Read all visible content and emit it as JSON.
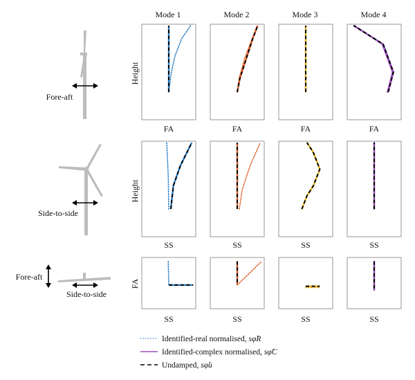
{
  "columns": [
    "Mode 1",
    "Mode 2",
    "Mode 3",
    "Mode 4"
  ],
  "rows": [
    {
      "key": "fa",
      "ylabel": "Height",
      "xlabel": "FA",
      "direction_labels": [
        "Fore-aft"
      ]
    },
    {
      "key": "ss",
      "ylabel": "Height",
      "xlabel": "SS",
      "direction_labels": [
        "Side-to-side"
      ]
    },
    {
      "key": "blade",
      "ylabel": "FA",
      "xlabel": "SS",
      "direction_labels": [
        "Fore-aft",
        "Side-to-side"
      ]
    }
  ],
  "legend": [
    {
      "style": "dotted",
      "color": "#2a7fc9",
      "text": "Identified-real normalised, ",
      "symbol": "sφ̃R"
    },
    {
      "style": "solid",
      "color": "#9b4fbf",
      "text": "Identified-complex normalised, ",
      "symbol": "sφ̃C"
    },
    {
      "style": "dashed",
      "color": "#000000",
      "text": "Undamped, ",
      "symbol": "sφ̃u"
    }
  ],
  "chart_data": {
    "type": "line",
    "colors": {
      "mode1": "#2a7fc9",
      "mode2": "#e0622a",
      "mode3": "#e8b320",
      "mode4": "#9b4fbf",
      "undamped": "#000000"
    },
    "panels": [
      {
        "row": 0,
        "col": 0,
        "color": "#2a7fc9",
        "undamped": [
          [
            0.0,
            0.0
          ],
          [
            0.0,
            1.0
          ]
        ],
        "identified": [
          [
            0.0,
            0.0
          ],
          [
            0.1,
            0.3
          ],
          [
            0.25,
            0.55
          ],
          [
            0.5,
            0.8
          ],
          [
            0.85,
            1.0
          ]
        ]
      },
      {
        "row": 0,
        "col": 1,
        "color": "#e0622a",
        "undamped": [
          [
            0.0,
            0.0
          ],
          [
            0.1,
            0.2
          ],
          [
            0.35,
            0.5
          ],
          [
            0.6,
            0.8
          ],
          [
            0.8,
            1.0
          ]
        ],
        "identified": [
          [
            0.0,
            0.0
          ],
          [
            0.08,
            0.22
          ],
          [
            0.3,
            0.52
          ],
          [
            0.58,
            0.8
          ],
          [
            0.78,
            1.0
          ]
        ]
      },
      {
        "row": 0,
        "col": 2,
        "color": "#e8b320",
        "undamped": [
          [
            0.0,
            0.0
          ],
          [
            0.0,
            1.0
          ]
        ],
        "identified": [
          [
            0.0,
            0.0
          ],
          [
            0.0,
            1.0
          ]
        ]
      },
      {
        "row": 0,
        "col": 3,
        "color": "#9b4fbf",
        "undamped": [
          [
            0.55,
            0.0
          ],
          [
            0.75,
            0.3
          ],
          [
            0.35,
            0.72
          ],
          [
            -0.8,
            1.0
          ]
        ],
        "identified": [
          [
            0.52,
            0.0
          ],
          [
            0.72,
            0.3
          ],
          [
            0.32,
            0.72
          ],
          [
            -0.78,
            1.0
          ]
        ]
      },
      {
        "row": 1,
        "col": 0,
        "color": "#2a7fc9",
        "undamped": [
          [
            0.08,
            0.0
          ],
          [
            0.18,
            0.35
          ],
          [
            0.45,
            0.65
          ],
          [
            0.9,
            1.0
          ]
        ],
        "identified": [
          [
            0.0,
            0.0
          ],
          [
            -0.02,
            0.5
          ],
          [
            -0.08,
            1.0
          ]
        ]
      },
      {
        "row": 1,
        "col": 1,
        "color": "#e0622a",
        "undamped": [
          [
            0.0,
            0.0
          ],
          [
            0.0,
            1.0
          ]
        ],
        "identified": [
          [
            0.08,
            0.0
          ],
          [
            0.2,
            0.3
          ],
          [
            0.5,
            0.65
          ],
          [
            0.9,
            1.0
          ]
        ]
      },
      {
        "row": 1,
        "col": 2,
        "color": "#e8b320",
        "undamped": [
          [
            -0.15,
            0.0
          ],
          [
            0.05,
            0.2
          ],
          [
            0.3,
            0.35
          ],
          [
            0.55,
            0.6
          ],
          [
            0.3,
            0.85
          ],
          [
            0.05,
            1.0
          ]
        ],
        "identified": [
          [
            -0.15,
            0.0
          ],
          [
            0.05,
            0.2
          ],
          [
            0.3,
            0.35
          ],
          [
            0.55,
            0.6
          ],
          [
            0.3,
            0.85
          ],
          [
            0.05,
            1.0
          ]
        ]
      },
      {
        "row": 1,
        "col": 3,
        "color": "#9b4fbf",
        "undamped": [
          [
            0.0,
            0.0
          ],
          [
            0.0,
            1.0
          ]
        ],
        "identified": [
          [
            0.0,
            0.0
          ],
          [
            0.0,
            1.0
          ]
        ]
      },
      {
        "row": 2,
        "col": 0,
        "color": "#2a7fc9",
        "undamped": [
          [
            0.0,
            -0.05
          ],
          [
            0.95,
            -0.05
          ]
        ],
        "identified": [
          [
            -0.02,
            0.9
          ],
          [
            0.0,
            -0.05
          ],
          [
            0.95,
            -0.05
          ]
        ]
      },
      {
        "row": 2,
        "col": 1,
        "color": "#e0622a",
        "undamped": [
          [
            0.0,
            0.9
          ],
          [
            0.0,
            -0.05
          ]
        ],
        "identified": [
          [
            0.0,
            0.9
          ],
          [
            0.0,
            -0.05
          ],
          [
            0.95,
            0.9
          ]
        ]
      },
      {
        "row": 2,
        "col": 2,
        "color": "#e8b320",
        "undamped": [
          [
            0.0,
            -0.1
          ],
          [
            0.55,
            -0.1
          ]
        ],
        "identified": [
          [
            0.0,
            -0.15
          ],
          [
            0.55,
            -0.15
          ]
        ]
      },
      {
        "row": 2,
        "col": 3,
        "color": "#9b4fbf",
        "undamped": [
          [
            0.0,
            0.9
          ],
          [
            0.0,
            -0.25
          ]
        ],
        "identified": [
          [
            0.0,
            0.9
          ],
          [
            0.0,
            -0.25
          ]
        ]
      }
    ]
  }
}
